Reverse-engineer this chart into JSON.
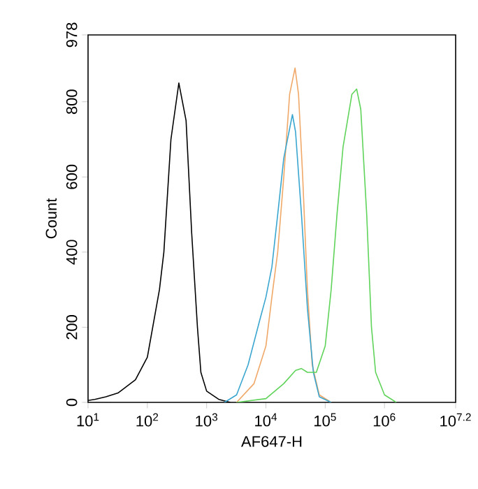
{
  "chart_data": {
    "type": "line",
    "xlabel": "AF647-H",
    "ylabel": "Count",
    "log": "x",
    "xlim": [
      10,
      15848932
    ],
    "ylim": [
      0,
      978
    ],
    "xticks": [
      {
        "value": 10,
        "label": "10$^{1}$"
      },
      {
        "value": 100,
        "label": "10$^{2}$"
      },
      {
        "value": 1000,
        "label": "10$^{3}$"
      },
      {
        "value": 10000,
        "label": "10$^{4}$"
      },
      {
        "value": 100000,
        "label": "10$^{5}$"
      },
      {
        "value": 1000000,
        "label": "10$^{6}$"
      },
      {
        "value": 15848932,
        "label": "10$^{7.2}$"
      }
    ],
    "yticks": [
      0,
      200,
      400,
      600,
      800,
      978
    ],
    "series": [
      {
        "color": "#000000",
        "x": [
          10,
          13,
          20,
          32,
          63,
          100,
          160,
          190,
          250,
          340,
          450,
          560,
          700,
          800,
          1000,
          1600,
          2500
        ],
        "values": [
          5,
          8,
          15,
          25,
          60,
          120,
          300,
          400,
          700,
          850,
          750,
          450,
          200,
          80,
          30,
          8,
          0
        ]
      },
      {
        "color": "#f0a868",
        "x": [
          3200,
          6300,
          10000,
          12600,
          15800,
          20000,
          25100,
          31000,
          35500,
          41700,
          50100,
          60300,
          79400,
          126000
        ],
        "values": [
          0,
          50,
          150,
          280,
          400,
          600,
          820,
          890,
          820,
          600,
          300,
          100,
          20,
          0
        ]
      },
      {
        "color": "#3aa6d0",
        "x": [
          2000,
          3200,
          5000,
          7900,
          10000,
          12600,
          15800,
          20000,
          28000,
          31600,
          39800,
          50100,
          63100,
          79400,
          126000
        ],
        "values": [
          0,
          20,
          100,
          220,
          280,
          360,
          500,
          650,
          766,
          720,
          500,
          250,
          80,
          15,
          0
        ]
      },
      {
        "color": "#5fd35a",
        "x": [
          3200,
          10000,
          20000,
          31600,
          39800,
          50100,
          70800,
          100000,
          126000,
          158000,
          200000,
          282000,
          339000,
          398000,
          501000,
          603000,
          708000,
          1000000,
          1580000
        ],
        "values": [
          0,
          10,
          50,
          85,
          90,
          80,
          80,
          150,
          300,
          500,
          680,
          820,
          834,
          780,
          500,
          200,
          80,
          20,
          0
        ]
      }
    ]
  }
}
